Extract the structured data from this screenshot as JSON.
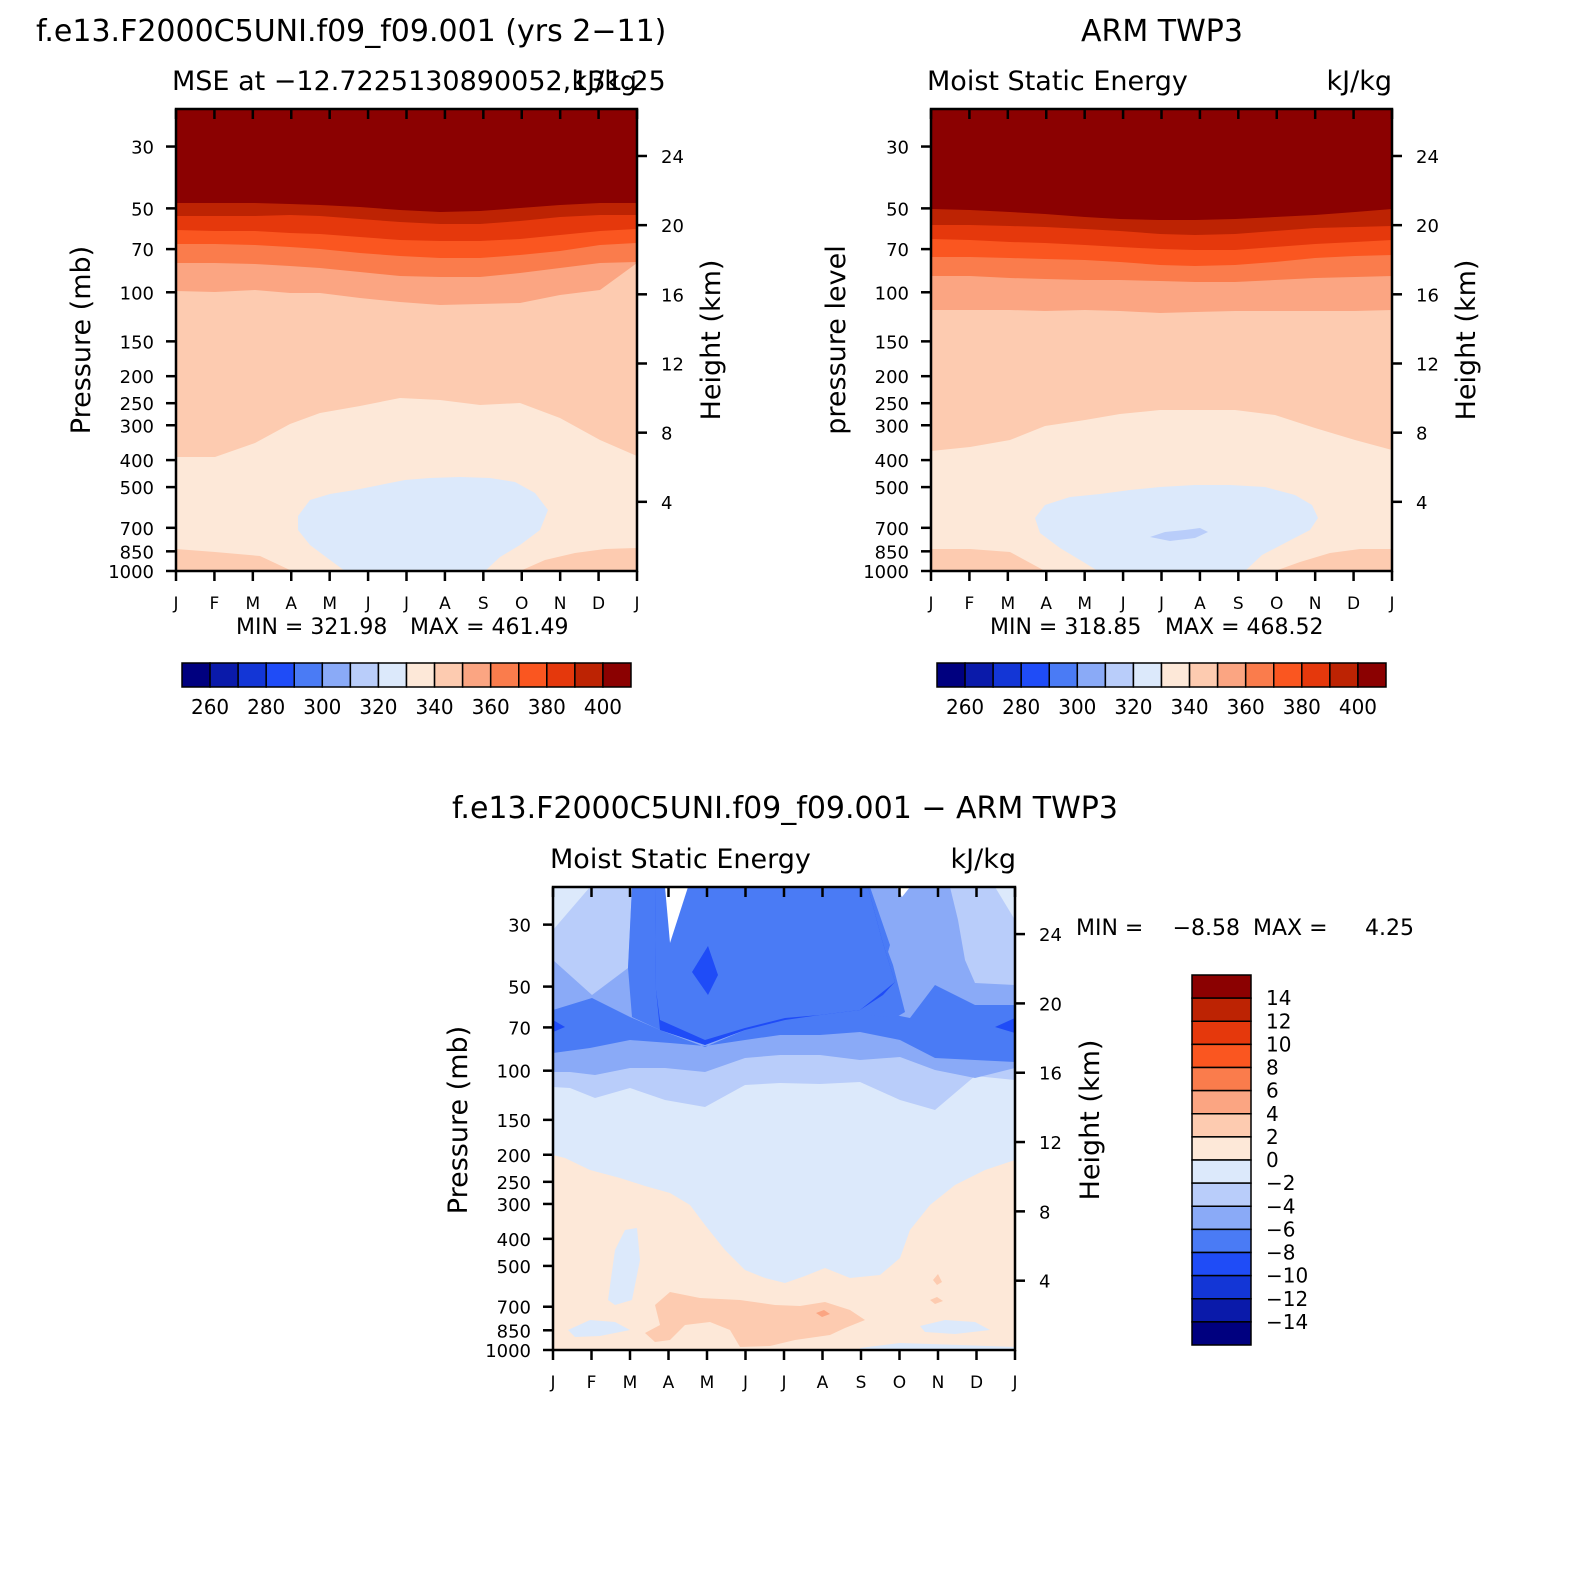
{
  "months": [
    "J",
    "F",
    "M",
    "A",
    "M",
    "J",
    "J",
    "A",
    "S",
    "O",
    "N",
    "D",
    "J"
  ],
  "pressure_ticks": [
    "30",
    "50",
    "70",
    "100",
    "150",
    "200",
    "250",
    "300",
    "400",
    "500",
    "700",
    "850",
    "1000"
  ],
  "pressure_values": [
    30,
    50,
    70,
    100,
    150,
    200,
    250,
    300,
    400,
    500,
    700,
    850,
    1000
  ],
  "height_ticks_km": [
    24,
    20,
    16,
    12,
    8,
    4
  ],
  "colors": {
    "mse": [
      "#00007f",
      "#0a1aaa",
      "#1336d6",
      "#1f4cf7",
      "#4a7bf5",
      "#8aaaf7",
      "#b9cdfa",
      "#dce9fb",
      "#fde8d8",
      "#fdcbb0",
      "#fba582",
      "#fa7c4c",
      "#fa5620",
      "#e5380c",
      "#bd2303",
      "#8b0101"
    ],
    "diff": [
      "#8b0101",
      "#bd2303",
      "#e5380c",
      "#fa5620",
      "#fa7c4c",
      "#fba582",
      "#fdcbb0",
      "#fde8d8",
      "#dce9fb",
      "#b9cdfa",
      "#8aaaf7",
      "#4a7bf5",
      "#1f4cf7",
      "#1336d6",
      "#0a1aaa",
      "#00007f"
    ]
  },
  "panel1": {
    "case_title": "f.e13.F2000C5UNI.f09_f09.001 (yrs 2−11)",
    "subtitle": "MSE at −12.7225130890052,131.25",
    "units": "kJ/kg",
    "y_label": "Pressure (mb)",
    "y2_label": "Height (km)",
    "min_text": "MIN  =  321.98",
    "max_text": "MAX  =  461.49"
  },
  "panel2": {
    "case_title": "ARM  TWP3",
    "subtitle": "Moist  Static  Energy",
    "units": "kJ/kg",
    "y_label": "pressure  level",
    "y2_label": "Height (km)",
    "min_text": "MIN  =  318.85",
    "max_text": "MAX  =  468.52"
  },
  "panel3": {
    "case_title": "f.e13.F2000C5UNI.f09_f09.001  −  ARM  TWP3",
    "subtitle": "Moist  Static  Energy",
    "units": "kJ/kg",
    "y_label": "Pressure (mb)",
    "y2_label": "Height (km)",
    "min_text": "MIN  =",
    "min_value": "−8.58",
    "max_text": "MAX  =",
    "max_value": "4.25"
  },
  "colorbar_mse_labels": [
    "260",
    "280",
    "300",
    "320",
    "340",
    "360",
    "380",
    "400"
  ],
  "colorbar_diff_labels": [
    "14",
    "12",
    "10",
    "8",
    "6",
    "4",
    "2",
    "0",
    "−2",
    "−4",
    "−6",
    "−8",
    "−10",
    "−12",
    "−14"
  ],
  "chart_data": [
    {
      "type": "heatmap",
      "title": "f.e13.F2000C5UNI.f09_f09.001 (yrs 2−11)",
      "subtitle": "MSE at −12.7225130890052,131.25",
      "units": "kJ/kg",
      "x": [
        "J",
        "F",
        "M",
        "A",
        "M",
        "J",
        "J",
        "A",
        "S",
        "O",
        "N",
        "D",
        "J"
      ],
      "y_pressure_mb": [
        30,
        50,
        70,
        100,
        150,
        200,
        250,
        300,
        400,
        500,
        700,
        850,
        1000
      ],
      "contour_levels": [
        260,
        270,
        280,
        290,
        300,
        310,
        320,
        330,
        340,
        350,
        360,
        370,
        380,
        390,
        400
      ],
      "xlabel": "",
      "ylabel": "Pressure (mb)",
      "y2label": "Height (km)",
      "ylim": [
        1000,
        22
      ],
      "min": 321.98,
      "max": 461.49
    },
    {
      "type": "heatmap",
      "title": "ARM TWP3",
      "subtitle": "Moist Static Energy",
      "units": "kJ/kg",
      "x": [
        "J",
        "F",
        "M",
        "A",
        "M",
        "J",
        "J",
        "A",
        "S",
        "O",
        "N",
        "D",
        "J"
      ],
      "y_pressure_mb": [
        30,
        50,
        70,
        100,
        150,
        200,
        250,
        300,
        400,
        500,
        700,
        850,
        1000
      ],
      "contour_levels": [
        260,
        270,
        280,
        290,
        300,
        310,
        320,
        330,
        340,
        350,
        360,
        370,
        380,
        390,
        400
      ],
      "xlabel": "",
      "ylabel": "pressure level",
      "y2label": "Height (km)",
      "ylim": [
        1000,
        22
      ],
      "min": 318.85,
      "max": 468.52
    },
    {
      "type": "heatmap",
      "title": "f.e13.F2000C5UNI.f09_f09.001 − ARM TWP3",
      "subtitle": "Moist Static Energy",
      "units": "kJ/kg",
      "x": [
        "J",
        "F",
        "M",
        "A",
        "M",
        "J",
        "J",
        "A",
        "S",
        "O",
        "N",
        "D",
        "J"
      ],
      "y_pressure_mb": [
        30,
        50,
        70,
        100,
        150,
        200,
        250,
        300,
        400,
        500,
        700,
        850,
        1000
      ],
      "contour_levels": [
        14,
        12,
        10,
        8,
        6,
        4,
        2,
        0,
        -2,
        -4,
        -6,
        -8,
        -10,
        -12,
        -14
      ],
      "xlabel": "",
      "ylabel": "Pressure (mb)",
      "y2label": "Height (km)",
      "ylim": [
        1000,
        22
      ],
      "min": -8.58,
      "max": 4.25
    }
  ]
}
